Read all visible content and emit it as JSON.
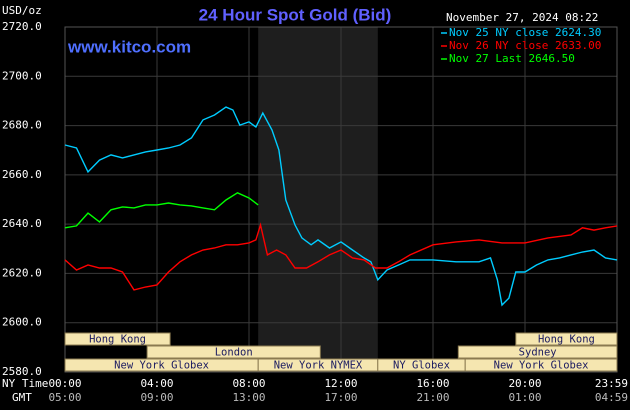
{
  "chart_data": {
    "type": "line",
    "title": "24 Hour Spot Gold (Bid)",
    "y_unit": "USD/oz",
    "watermark": "www.kitco.com",
    "timestamp": "November 27, 2024 08:22",
    "x_row_label": "NY Time",
    "x2_row_label": "GMT",
    "xlim": [
      0,
      24
    ],
    "xticks": [
      {
        "value": 0,
        "label": "00:00"
      },
      {
        "value": 4,
        "label": "04:00"
      },
      {
        "value": 8,
        "label": "08:00"
      },
      {
        "value": 12,
        "label": "12:00"
      },
      {
        "value": 16,
        "label": "16:00"
      },
      {
        "value": 20,
        "label": "20:00"
      },
      {
        "value": 24,
        "label": "23:59"
      }
    ],
    "x2tick_labels": [
      "05:00",
      "09:00",
      "13:00",
      "17:00",
      "21:00",
      "01:00",
      "04:59"
    ],
    "ylim": [
      2580,
      2720
    ],
    "yticks": [
      {
        "value": 2580,
        "label": "2580.0"
      },
      {
        "value": 2600,
        "label": "2600.0"
      },
      {
        "value": 2620,
        "label": "2620.0"
      },
      {
        "value": 2640,
        "label": "2640.0"
      },
      {
        "value": 2660,
        "label": "2660.0"
      },
      {
        "value": 2680,
        "label": "2680.0"
      },
      {
        "value": 2700,
        "label": "2700.0"
      },
      {
        "value": 2720,
        "label": "2720.0"
      }
    ],
    "grid": true,
    "series": [
      {
        "name": "Nov 25 NY close 2624.30",
        "color": "#00ccff",
        "x": [
          0,
          0.5,
          1,
          1.5,
          2,
          2.5,
          3,
          3.5,
          4,
          4.5,
          5,
          5.5,
          6,
          6.5,
          7,
          7.3,
          7.6,
          8,
          8.3,
          8.6,
          9,
          9.3,
          9.6,
          10,
          10.3,
          10.7,
          11,
          11.5,
          12,
          12.5,
          13,
          13.3,
          13.6,
          14,
          14.5,
          15,
          16,
          17,
          18,
          18.5,
          18.8,
          19,
          19.3,
          19.6,
          20,
          20.5,
          21,
          21.5,
          22,
          22.5,
          23,
          23.5,
          24
        ],
        "values": [
          2672.1,
          2670.9,
          2661.2,
          2666.0,
          2668.1,
          2666.9,
          2668.1,
          2669.3,
          2670.1,
          2670.9,
          2672.1,
          2675.0,
          2682.3,
          2684.3,
          2687.5,
          2686.3,
          2680.2,
          2681.5,
          2679.4,
          2685.1,
          2678.2,
          2670.1,
          2649.8,
          2639.7,
          2634.4,
          2631.6,
          2633.6,
          2630.3,
          2632.8,
          2629.5,
          2626.3,
          2624.7,
          2617.4,
          2621.4,
          2623.4,
          2625.5,
          2625.5,
          2624.7,
          2624.7,
          2626.3,
          2617.4,
          2607.2,
          2610.0,
          2620.6,
          2620.6,
          2623.4,
          2625.5,
          2626.3,
          2627.5,
          2628.7,
          2629.5,
          2626.3,
          2625.5
        ]
      },
      {
        "name": "Nov 26 NY close 2633.00",
        "color": "#ff0000",
        "x": [
          0,
          0.5,
          1,
          1.5,
          2,
          2.5,
          3,
          3.5,
          4,
          4.5,
          5,
          5.5,
          6,
          6.5,
          7,
          7.5,
          8,
          8.3,
          8.5,
          8.8,
          9.2,
          9.6,
          10,
          10.5,
          11,
          11.5,
          12,
          12.5,
          13,
          13.5,
          14,
          14.5,
          15,
          16,
          17,
          18,
          19,
          20,
          21,
          22,
          22.5,
          23,
          23.5,
          24
        ],
        "values": [
          2625.5,
          2621.4,
          2623.4,
          2622.2,
          2622.2,
          2620.6,
          2613.3,
          2614.5,
          2615.3,
          2620.6,
          2624.7,
          2627.5,
          2629.5,
          2630.3,
          2631.6,
          2631.6,
          2632.4,
          2633.6,
          2639.7,
          2627.5,
          2629.5,
          2627.5,
          2622.2,
          2622.2,
          2624.7,
          2627.5,
          2629.5,
          2626.3,
          2625.5,
          2622.2,
          2622.2,
          2624.7,
          2627.5,
          2631.6,
          2632.8,
          2633.6,
          2632.4,
          2632.4,
          2634.4,
          2635.6,
          2638.5,
          2637.6,
          2638.5,
          2639.3
        ]
      },
      {
        "name": "Nov 27 Last 2646.50",
        "color": "#00ff00",
        "x": [
          0,
          0.5,
          1,
          1.5,
          2,
          2.5,
          3,
          3.5,
          4,
          4.5,
          5,
          5.5,
          6,
          6.5,
          7,
          7.5,
          8,
          8.4
        ],
        "values": [
          2638.5,
          2639.3,
          2644.5,
          2640.9,
          2645.8,
          2647.0,
          2646.6,
          2647.8,
          2647.8,
          2648.6,
          2647.8,
          2647.4,
          2646.6,
          2645.8,
          2649.8,
          2652.7,
          2650.6,
          2647.8
        ]
      }
    ],
    "session_rows": [
      [
        {
          "name": "Hong Kong",
          "start": 0,
          "end": 4.57
        },
        {
          "name": "Hong Kong",
          "start": 19.6,
          "end": 24
        }
      ],
      [
        {
          "name": "London",
          "start": 3.57,
          "end": 11.1
        },
        {
          "name": "Sydney",
          "start": 17.1,
          "end": 24
        }
      ],
      [
        {
          "name": "New York Globex",
          "start": 0,
          "end": 8.4
        },
        {
          "name": "New York NYMEX",
          "start": 8.4,
          "end": 13.6,
          "shade": true
        },
        {
          "name": "NY Globex",
          "start": 13.6,
          "end": 17.4
        },
        {
          "name": "New York Globex",
          "start": 17.4,
          "end": 24
        }
      ]
    ]
  }
}
